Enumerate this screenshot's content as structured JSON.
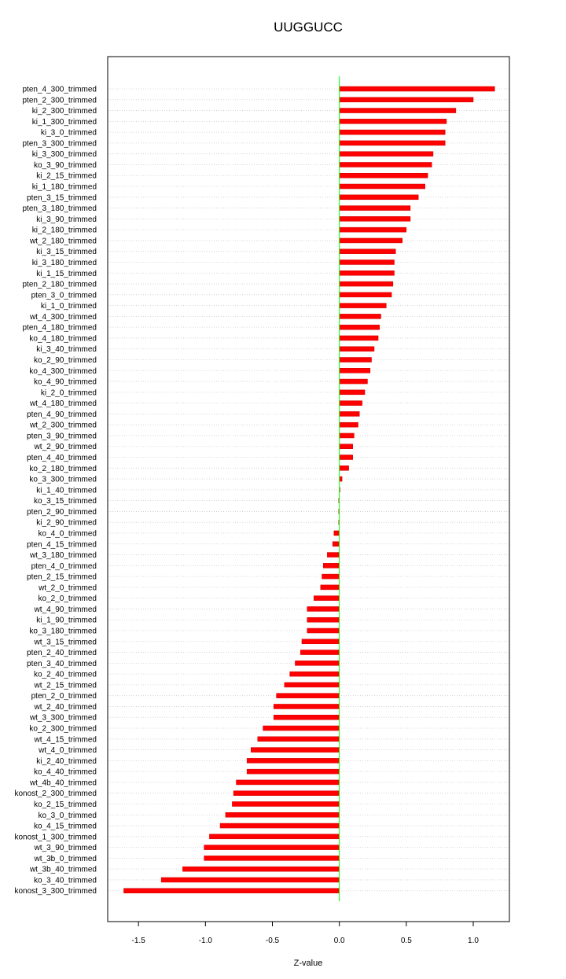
{
  "chart_data": {
    "type": "bar",
    "orientation": "horizontal",
    "title": "UUGGUCC",
    "xlabel": "Z-value",
    "ylabel": "",
    "xlim": [
      -1.73,
      1.27
    ],
    "xticks": [
      -1.5,
      -1.0,
      -0.5,
      0.0,
      0.5,
      1.0
    ],
    "xtick_labels": [
      "-1.5",
      "-1.0",
      "-0.5",
      "0.0",
      "0.5",
      "1.0"
    ],
    "grid": "horizontal dotted lines at each category",
    "reference_line": 0,
    "colors": {
      "bar": "#ff0000",
      "bar_edge": "#cc0000",
      "reference": "#00ff00",
      "grid": "#cccccc"
    },
    "categories": [
      "pten_4_300_trimmed",
      "pten_2_300_trimmed",
      "ki_2_300_trimmed",
      "ki_1_300_trimmed",
      "ki_3_0_trimmed",
      "pten_3_300_trimmed",
      "ki_3_300_trimmed",
      "ko_3_90_trimmed",
      "ki_2_15_trimmed",
      "ki_1_180_trimmed",
      "pten_3_15_trimmed",
      "pten_3_180_trimmed",
      "ki_3_90_trimmed",
      "ki_2_180_trimmed",
      "wt_2_180_trimmed",
      "ki_3_15_trimmed",
      "ki_3_180_trimmed",
      "ki_1_15_trimmed",
      "pten_2_180_trimmed",
      "pten_3_0_trimmed",
      "ki_1_0_trimmed",
      "wt_4_300_trimmed",
      "pten_4_180_trimmed",
      "ko_4_180_trimmed",
      "ki_3_40_trimmed",
      "ko_2_90_trimmed",
      "ko_4_300_trimmed",
      "ko_4_90_trimmed",
      "ki_2_0_trimmed",
      "wt_4_180_trimmed",
      "pten_4_90_trimmed",
      "wt_2_300_trimmed",
      "pten_3_90_trimmed",
      "wt_2_90_trimmed",
      "pten_4_40_trimmed",
      "ko_2_180_trimmed",
      "ko_3_300_trimmed",
      "ki_1_40_trimmed",
      "ko_3_15_trimmed",
      "pten_2_90_trimmed",
      "ki_2_90_trimmed",
      "ko_4_0_trimmed",
      "pten_4_15_trimmed",
      "wt_3_180_trimmed",
      "pten_4_0_trimmed",
      "pten_2_15_trimmed",
      "wt_2_0_trimmed",
      "ko_2_0_trimmed",
      "wt_4_90_trimmed",
      "ki_1_90_trimmed",
      "ko_3_180_trimmed",
      "wt_3_15_trimmed",
      "pten_2_40_trimmed",
      "pten_3_40_trimmed",
      "ko_2_40_trimmed",
      "wt_2_15_trimmed",
      "pten_2_0_trimmed",
      "wt_2_40_trimmed",
      "wt_3_300_trimmed",
      "ko_2_300_trimmed",
      "wt_4_15_trimmed",
      "wt_4_0_trimmed",
      "ki_2_40_trimmed",
      "ko_4_40_trimmed",
      "wt_4b_40_trimmed",
      "konost_2_300_trimmed",
      "ko_2_15_trimmed",
      "ko_3_0_trimmed",
      "ko_4_15_trimmed",
      "konost_1_300_trimmed",
      "wt_3_90_trimmed",
      "wt_3b_0_trimmed",
      "wt_3b_40_trimmed",
      "ko_3_40_trimmed",
      "konost_3_300_trimmed"
    ],
    "values": [
      1.16,
      1.0,
      0.87,
      0.8,
      0.79,
      0.79,
      0.7,
      0.69,
      0.66,
      0.64,
      0.59,
      0.53,
      0.53,
      0.5,
      0.47,
      0.42,
      0.41,
      0.41,
      0.4,
      0.39,
      0.35,
      0.31,
      0.3,
      0.29,
      0.26,
      0.24,
      0.23,
      0.21,
      0.19,
      0.17,
      0.15,
      0.14,
      0.11,
      0.1,
      0.1,
      0.07,
      0.02,
      0.005,
      -0.005,
      -0.005,
      -0.005,
      -0.04,
      -0.05,
      -0.09,
      -0.12,
      -0.13,
      -0.14,
      -0.19,
      -0.24,
      -0.24,
      -0.24,
      -0.28,
      -0.29,
      -0.33,
      -0.37,
      -0.41,
      -0.47,
      -0.49,
      -0.49,
      -0.57,
      -0.61,
      -0.66,
      -0.69,
      -0.69,
      -0.77,
      -0.79,
      -0.8,
      -0.85,
      -0.89,
      -0.97,
      -1.01,
      -1.01,
      -1.17,
      -1.33,
      -1.61
    ]
  }
}
